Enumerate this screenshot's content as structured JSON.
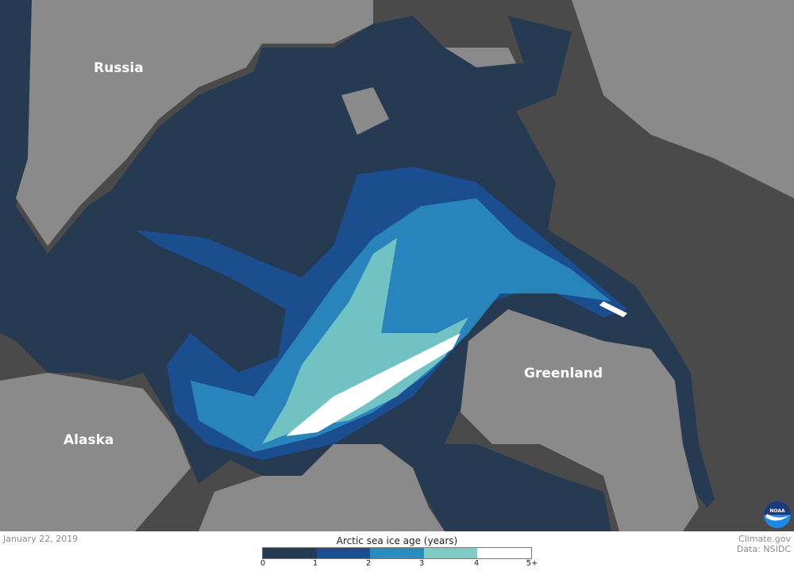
{
  "map": {
    "labels": {
      "russia": "Russia",
      "greenland": "Greenland",
      "alaska": "Alaska"
    },
    "colors": {
      "land": "#8a8a8a",
      "open_water": "#4a4a4a",
      "coast": "#5a5a5a"
    }
  },
  "footer": {
    "date": "January 22, 2019",
    "credit": "Climate.gov",
    "source": "Data: NSIDC",
    "logo_text": "NOAA"
  },
  "legend": {
    "title": "Arctic sea ice age (years)",
    "ticks": [
      "0",
      "1",
      "2",
      "3",
      "4",
      "5+"
    ],
    "classes": [
      {
        "range": "0-1",
        "color": "#263a52"
      },
      {
        "range": "1-2",
        "color": "#1a4f91"
      },
      {
        "range": "2-3",
        "color": "#2a8bbf"
      },
      {
        "range": "3-4",
        "color": "#7ecdc4"
      },
      {
        "range": "4-5+",
        "color": "#ffffff"
      }
    ]
  }
}
